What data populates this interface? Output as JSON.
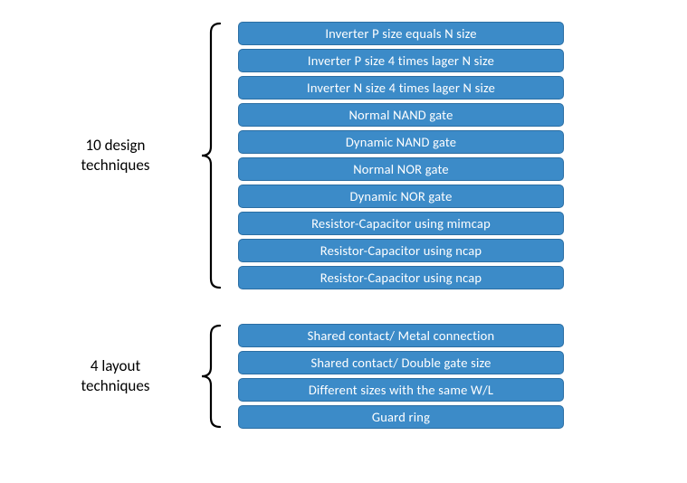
{
  "groups": [
    {
      "label": "10 design\ntechniques",
      "label_fontsize": 17,
      "label_color": "#000000",
      "items": [
        "Inverter P size equals N size",
        "Inverter P size 4 times lager N size",
        "Inverter N size 4 times lager N size",
        "Normal NAND gate",
        "Dynamic NAND gate",
        "Normal NOR gate",
        "Dynamic NOR gate",
        "Resistor-Capacitor using mimcap",
        "Resistor-Capacitor using ncap",
        "Resistor-Capacitor using ncap"
      ],
      "item_fill": "#3c8bc8",
      "item_stroke": "#2b6ea3",
      "item_text_color": "#ffffff",
      "item_width": 360,
      "item_height": 26,
      "item_radius": 5,
      "item_fontsize": 14.5,
      "item_gap": 4,
      "brace_color": "#000000",
      "brace_stroke_width": 2.2
    },
    {
      "label": "4 layout\ntechniques",
      "label_fontsize": 17,
      "label_color": "#000000",
      "items": [
        "Shared contact/ Metal connection",
        "Shared contact/ Double gate size",
        "Different sizes with the same W/L",
        "Guard ring"
      ],
      "item_fill": "#3c8bc8",
      "item_stroke": "#2b6ea3",
      "item_text_color": "#ffffff",
      "item_width": 360,
      "item_height": 26,
      "item_radius": 5,
      "item_fontsize": 14.5,
      "item_gap": 4,
      "brace_color": "#000000",
      "brace_stroke_width": 2.2
    }
  ],
  "background_color": "#ffffff",
  "font_family": "Calibri, Arial, sans-serif"
}
